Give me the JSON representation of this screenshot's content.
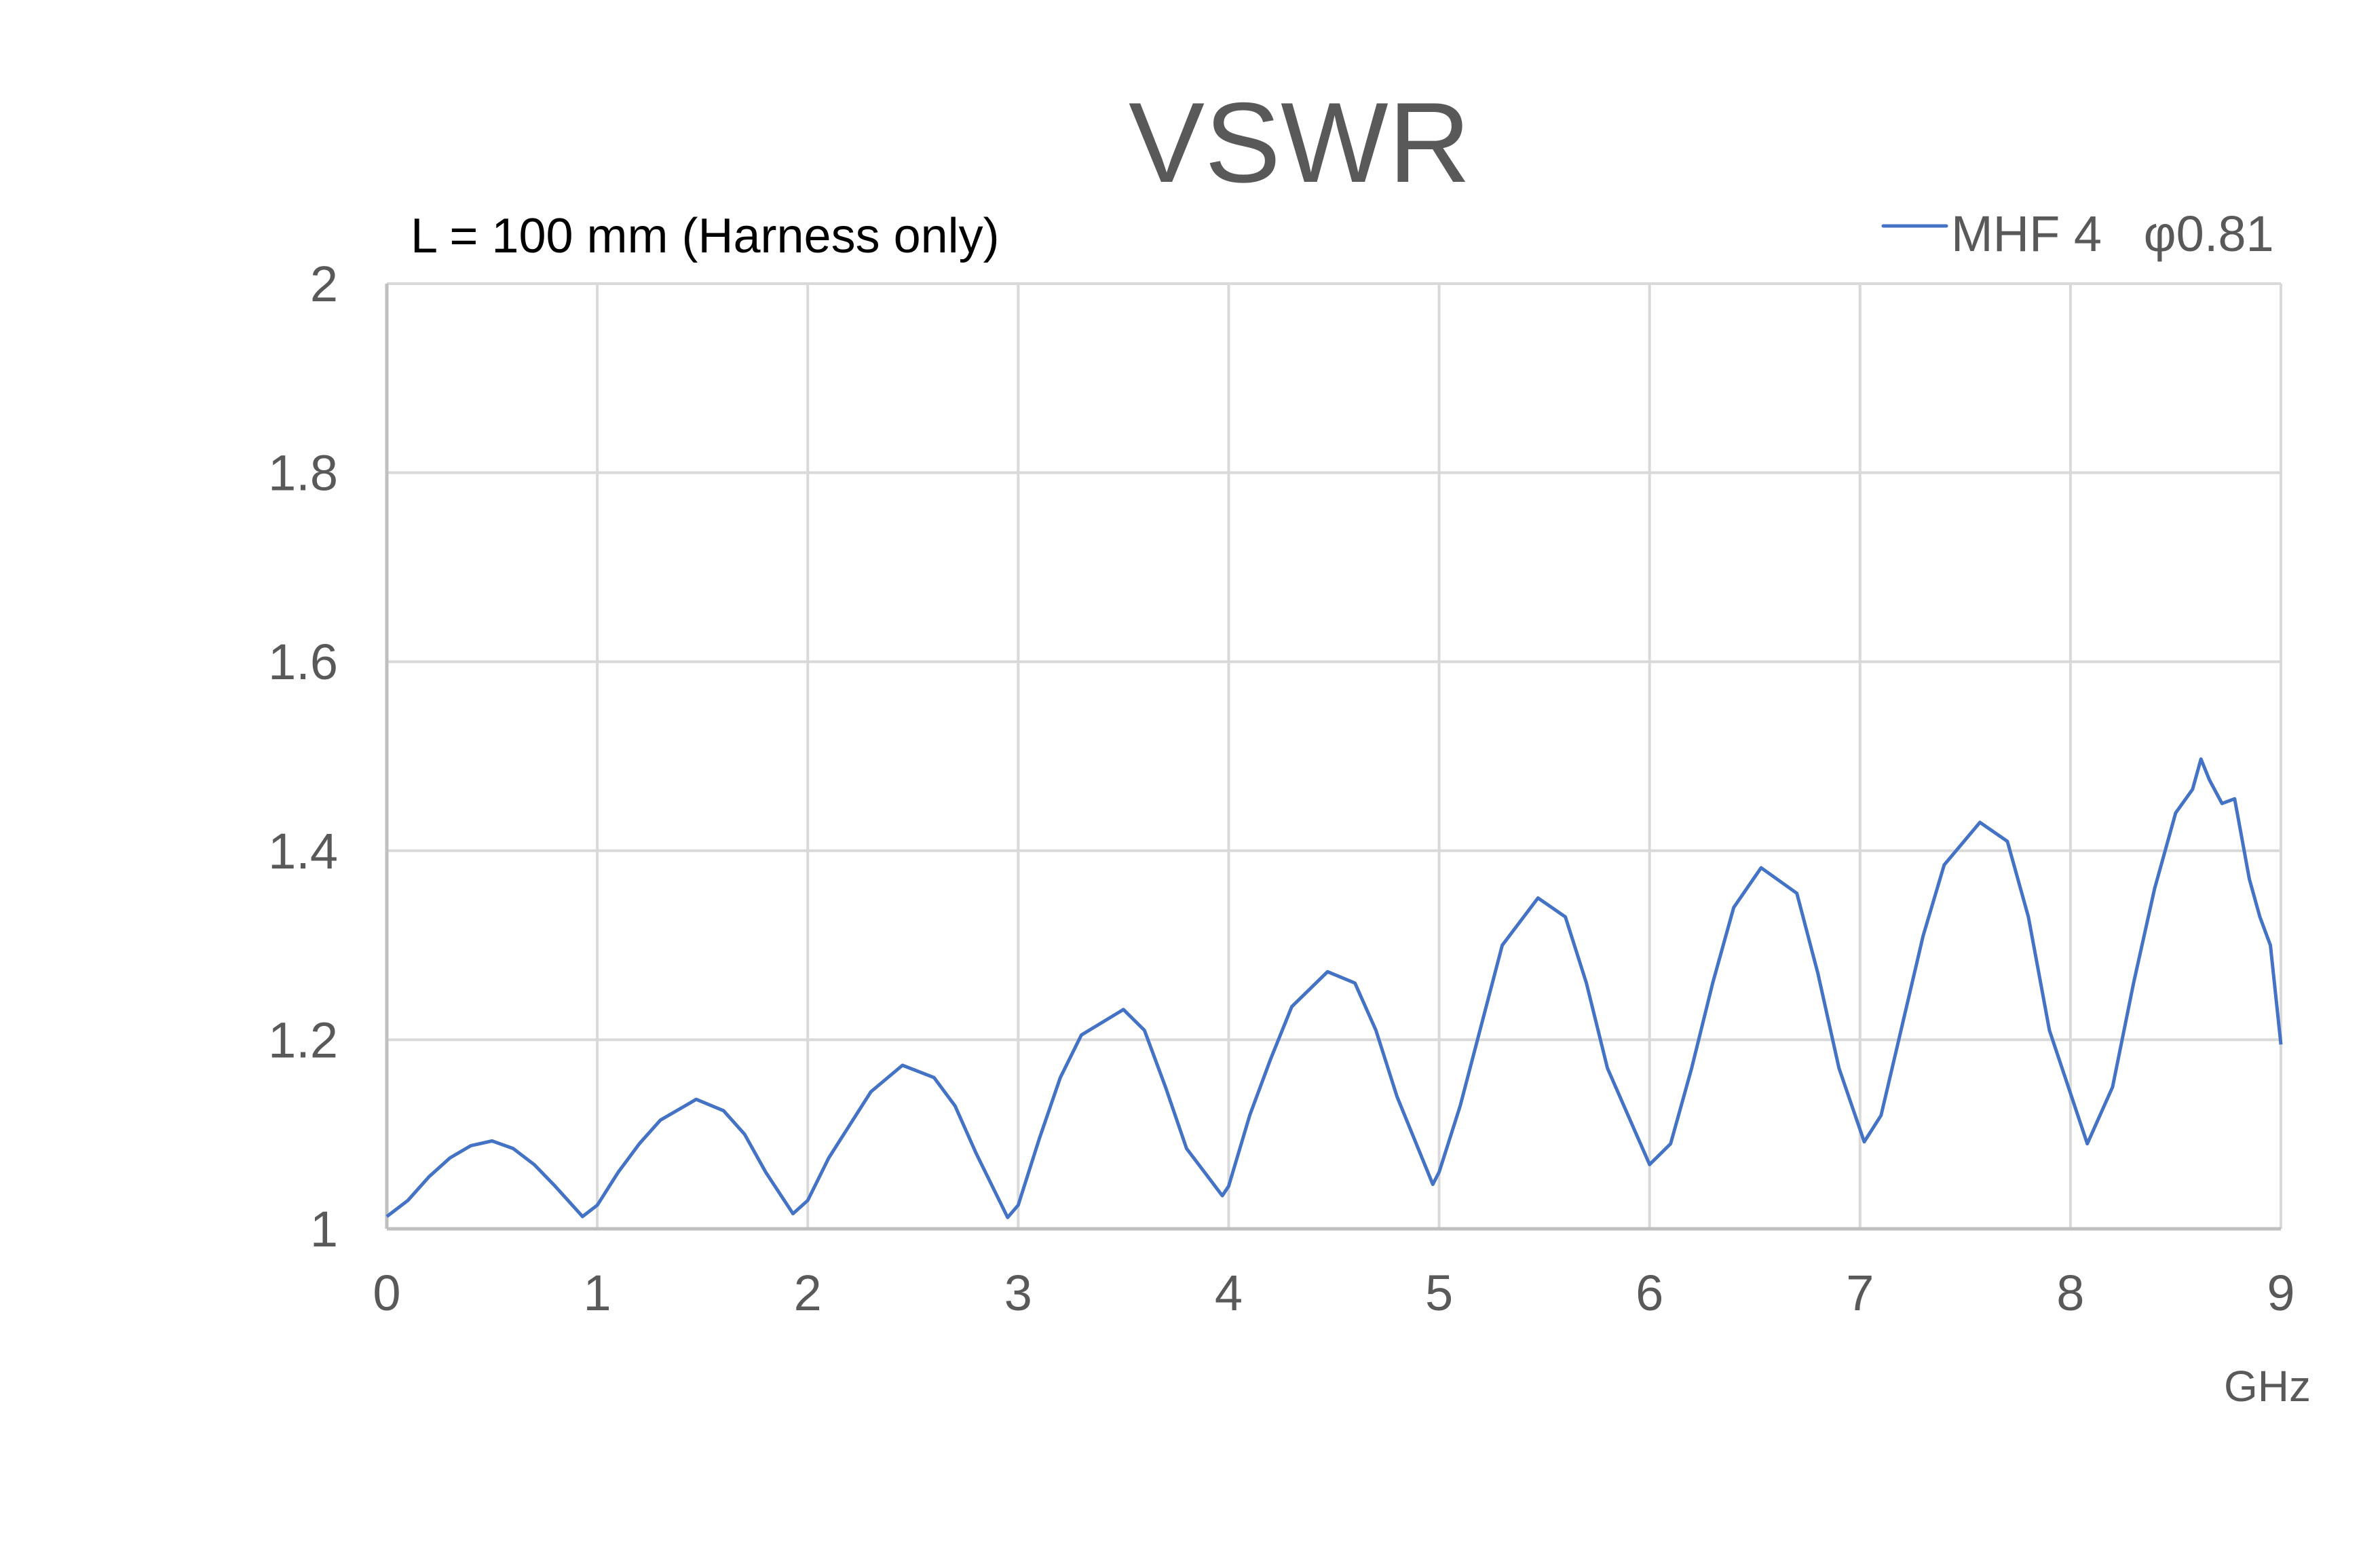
{
  "chart_data": {
    "type": "line",
    "title": "VSWR",
    "subtitle": "L = 100 mm (Harness only)",
    "xlabel": "GHz",
    "ylabel": "",
    "xlim": [
      0,
      9
    ],
    "ylim": [
      1,
      2
    ],
    "x_ticks": [
      "0",
      "1",
      "2",
      "3",
      "4",
      "5",
      "6",
      "7",
      "8",
      "9"
    ],
    "y_ticks": [
      "1",
      "1.2",
      "1.4",
      "1.6",
      "1.8",
      "2"
    ],
    "grid": true,
    "legend_position": "top-right",
    "series": [
      {
        "name": "MHF 4   φ0.81",
        "color": "#4472c4",
        "x": [
          0,
          0.1,
          0.2,
          0.3,
          0.4,
          0.5,
          0.6,
          0.7,
          0.8,
          0.93,
          1.0,
          1.1,
          1.2,
          1.3,
          1.47,
          1.6,
          1.7,
          1.8,
          1.93,
          2.0,
          2.1,
          2.2,
          2.3,
          2.45,
          2.6,
          2.7,
          2.8,
          2.95,
          3.0,
          3.1,
          3.2,
          3.3,
          3.5,
          3.6,
          3.7,
          3.8,
          3.97,
          4.0,
          4.1,
          4.2,
          4.3,
          4.47,
          4.6,
          4.7,
          4.8,
          4.97,
          5.0,
          5.1,
          5.2,
          5.3,
          5.47,
          5.6,
          5.7,
          5.8,
          6.0,
          6.1,
          6.2,
          6.3,
          6.4,
          6.53,
          6.7,
          6.8,
          6.9,
          7.02,
          7.1,
          7.2,
          7.3,
          7.4,
          7.57,
          7.7,
          7.8,
          7.9,
          8.08,
          8.2,
          8.3,
          8.4,
          8.5,
          8.58,
          8.62,
          8.66,
          8.72,
          8.78,
          8.85,
          8.9,
          8.95,
          9.0
        ],
        "y": [
          1.013,
          1.03,
          1.055,
          1.075,
          1.088,
          1.093,
          1.085,
          1.068,
          1.045,
          1.013,
          1.025,
          1.06,
          1.09,
          1.115,
          1.137,
          1.125,
          1.1,
          1.06,
          1.016,
          1.03,
          1.075,
          1.11,
          1.145,
          1.173,
          1.16,
          1.13,
          1.08,
          1.012,
          1.025,
          1.095,
          1.16,
          1.205,
          1.232,
          1.21,
          1.15,
          1.085,
          1.035,
          1.045,
          1.12,
          1.18,
          1.235,
          1.272,
          1.26,
          1.21,
          1.14,
          1.047,
          1.06,
          1.13,
          1.215,
          1.3,
          1.35,
          1.33,
          1.26,
          1.17,
          1.068,
          1.09,
          1.17,
          1.26,
          1.34,
          1.382,
          1.355,
          1.27,
          1.17,
          1.092,
          1.12,
          1.215,
          1.31,
          1.385,
          1.43,
          1.41,
          1.33,
          1.21,
          1.09,
          1.15,
          1.26,
          1.36,
          1.44,
          1.465,
          1.497,
          1.475,
          1.45,
          1.455,
          1.37,
          1.33,
          1.3,
          1.195
        ]
      }
    ]
  },
  "header": {
    "title": "VSWR",
    "subtitle": "L = 100 mm (Harness only)"
  },
  "legend": {
    "label": "MHF 4   φ0.81",
    "color": "#4472c4"
  },
  "axes": {
    "x_unit": "GHz"
  }
}
